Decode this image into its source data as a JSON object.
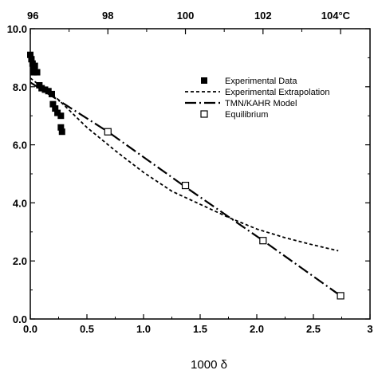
{
  "chart_data": {
    "type": "scatter",
    "xlabel": "1000 δ",
    "ylabel": "",
    "xlim": [
      0,
      3
    ],
    "ylim": [
      0,
      10
    ],
    "x_ticks": [
      "0.0",
      "0.5",
      "1.0",
      "1.5",
      "2.0",
      "2.5",
      "3"
    ],
    "y_ticks": [
      "0.0",
      "2.0",
      "4.0",
      "6.0",
      "8.0",
      "10.0"
    ],
    "top_axis": {
      "ticks": [
        {
          "label": "96",
          "x": 0.0
        },
        {
          "label": "98",
          "x": 0.685
        },
        {
          "label": "100",
          "x": 1.37
        },
        {
          "label": "102",
          "x": 2.055
        },
        {
          "label": "104°C",
          "x": 2.74
        }
      ]
    },
    "grid": false,
    "legend_position": "top-right",
    "series": [
      {
        "name": "Experimental Data",
        "style": "filled-square",
        "points": [
          [
            0.0,
            9.1
          ],
          [
            0.01,
            8.95
          ],
          [
            0.02,
            8.8
          ],
          [
            0.03,
            8.65
          ],
          [
            0.03,
            8.5
          ],
          [
            0.04,
            8.72
          ],
          [
            0.06,
            8.5
          ],
          [
            0.08,
            8.05
          ],
          [
            0.1,
            7.95
          ],
          [
            0.13,
            7.9
          ],
          [
            0.16,
            7.85
          ],
          [
            0.19,
            7.75
          ],
          [
            0.2,
            7.4
          ],
          [
            0.22,
            7.25
          ],
          [
            0.24,
            7.1
          ],
          [
            0.27,
            7.0
          ],
          [
            0.27,
            6.6
          ],
          [
            0.28,
            6.45
          ]
        ]
      },
      {
        "name": "Experimental Extrapolation",
        "style": "dashed",
        "points": [
          [
            0.0,
            8.3
          ],
          [
            0.25,
            7.55
          ],
          [
            0.5,
            6.6
          ],
          [
            0.75,
            5.8
          ],
          [
            1.0,
            5.05
          ],
          [
            1.25,
            4.4
          ],
          [
            1.5,
            3.95
          ],
          [
            1.75,
            3.5
          ],
          [
            2.0,
            3.1
          ],
          [
            2.25,
            2.8
          ],
          [
            2.5,
            2.55
          ],
          [
            2.72,
            2.35
          ]
        ]
      },
      {
        "name": "TMN/KAHR Model",
        "style": "long-dash",
        "points": [
          [
            0.0,
            8.15
          ],
          [
            0.685,
            6.45
          ],
          [
            1.37,
            4.55
          ],
          [
            2.055,
            2.7
          ],
          [
            2.74,
            0.8
          ]
        ]
      },
      {
        "name": "Equilibrium",
        "style": "open-square",
        "points": [
          [
            0.685,
            6.45
          ],
          [
            1.37,
            4.6
          ],
          [
            2.055,
            2.7
          ],
          [
            2.74,
            0.8
          ]
        ]
      }
    ]
  }
}
